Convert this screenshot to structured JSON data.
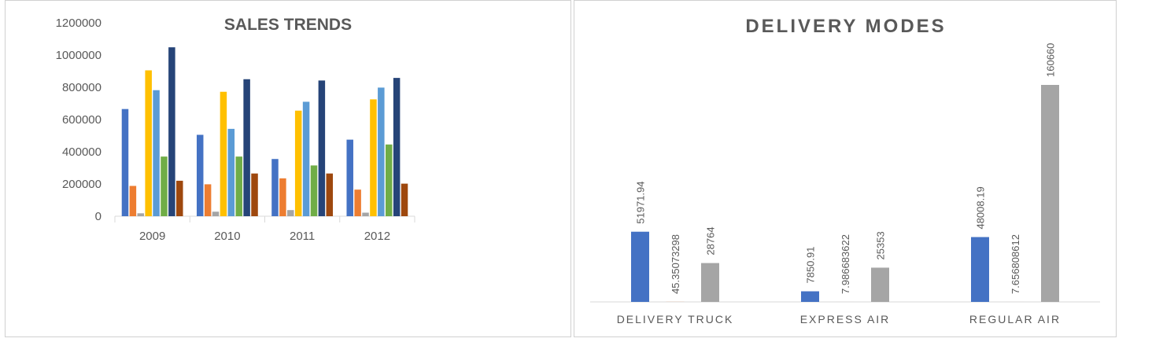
{
  "chart_data": [
    {
      "type": "bar",
      "title": "SALES TRENDS",
      "categories": [
        "2009",
        "2010",
        "2011",
        "2012"
      ],
      "ylim": [
        0,
        1200000
      ],
      "yticks": [
        "0",
        "200000",
        "400000",
        "600000",
        "800000",
        "1000000",
        "1200000"
      ],
      "grid": false,
      "legend": "none",
      "series": [
        {
          "color": "#4472C4",
          "values": [
            665000,
            505000,
            355000,
            475000
          ]
        },
        {
          "color": "#ED7D31",
          "values": [
            188000,
            198000,
            235000,
            165000
          ]
        },
        {
          "color": "#A5A5A5",
          "values": [
            18000,
            28000,
            38000,
            22000
          ]
        },
        {
          "color": "#FFC000",
          "values": [
            905000,
            772000,
            655000,
            725000
          ]
        },
        {
          "color": "#5B9BD5",
          "values": [
            782000,
            542000,
            710000,
            798000
          ]
        },
        {
          "color": "#70AD47",
          "values": [
            370000,
            370000,
            315000,
            445000
          ]
        },
        {
          "color": "#264478",
          "values": [
            1048000,
            850000,
            842000,
            858000
          ]
        },
        {
          "color": "#9E480E",
          "values": [
            220000,
            265000,
            265000,
            202000
          ]
        }
      ]
    },
    {
      "type": "bar",
      "title": "DELIVERY MODES",
      "categories": [
        "DELIVERY TRUCK",
        "EXPRESS AIR",
        "REGULAR AIR"
      ],
      "grid": false,
      "legend": "none",
      "series": [
        {
          "color": "#4472C4",
          "values": [
            51971.94,
            7850.91,
            48008.19
          ],
          "labels": [
            "51971.94",
            "7850.91",
            "48008.19"
          ]
        },
        {
          "color": "#ED7D31",
          "values": [
            45.35073298,
            7.986683622,
            7.656808612
          ],
          "labels": [
            "45.35073298",
            "7.986683622",
            "7.656808612"
          ]
        },
        {
          "color": "#A5A5A5",
          "values": [
            28764,
            25353,
            160660
          ],
          "labels": [
            "28764",
            "25353",
            "160660"
          ]
        }
      ]
    }
  ]
}
